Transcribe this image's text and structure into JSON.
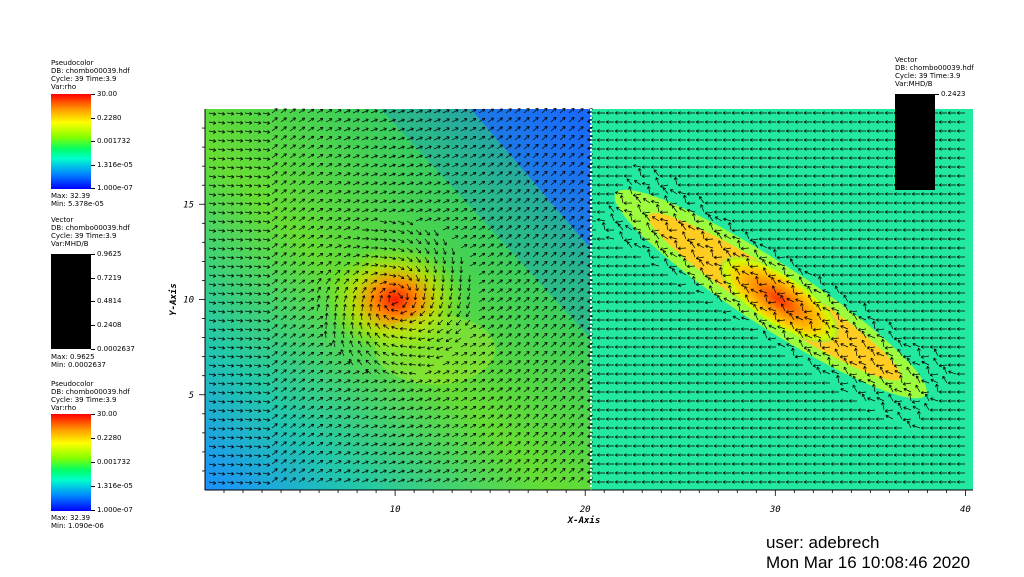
{
  "legends": [
    {
      "lines": [
        "Pseudocolor",
        "DB: chombo00039.hdf",
        "Cycle: 39     Time:3.9",
        "Var:rho"
      ],
      "ticks": [
        "30.00",
        "0.2280",
        "0.001732",
        "1.316e-05",
        "1.000e-07"
      ],
      "max": "Max: 32.39",
      "min": "Min: 5.378e-05",
      "style": "rainbow"
    },
    {
      "lines": [
        "Vector",
        "DB: chombo00039.hdf",
        "Cycle: 39     Time:3.9",
        "Var:MHD/B"
      ],
      "ticks": [
        "0.9625",
        "0.7219",
        "0.4814",
        "0.2408",
        "0.0002637"
      ],
      "max": "Max: 0.9625",
      "min": "Min: 0.0002637",
      "style": "black"
    },
    {
      "lines": [
        "Pseudocolor",
        "DB: chombo00039.hdf",
        "Cycle: 39     Time:3.9",
        "Var:rho"
      ],
      "ticks": [
        "30.00",
        "0.2280",
        "0.001732",
        "1.316e-05",
        "1.000e-07"
      ],
      "max": "Max: 32.39",
      "min": "Min: 1.090e-06",
      "style": "rainbow"
    }
  ],
  "legend_right": {
    "lines": [
      "Vector",
      "DB: chombo00039.hdf",
      "Cycle: 39     Time:3.9",
      "Var:MHD/B"
    ],
    "top_tick": "0.2423"
  },
  "chart_data": {
    "type": "heatmap",
    "title": "",
    "xlabel": "X-Axis",
    "ylabel": "Y-Axis",
    "xlim": [
      0,
      40.4
    ],
    "ylim": [
      0,
      20
    ],
    "xticks": [
      10,
      20,
      30,
      40
    ],
    "yticks": [
      5,
      10,
      15
    ],
    "colormap": "log rainbow (blue low, red high)",
    "fields": [
      {
        "name": "rho",
        "region": "left",
        "x_range": [
          0,
          20.3
        ],
        "peak": [
          10,
          10
        ],
        "max": 32.39,
        "min": 5.378e-05
      },
      {
        "name": "rho",
        "region": "right",
        "x_range": [
          20.3,
          40.4
        ],
        "peak": [
          30.2,
          10
        ],
        "max": 32.39,
        "min": 1.09e-06
      }
    ],
    "overlay": "Vector MHD/B (black arrows)"
  },
  "footer": {
    "user": "user: adebrech",
    "date": "Mon Mar 16 10:08:46 2020"
  },
  "colors": {
    "red": "#ff0000",
    "yellow": "#ffff00",
    "green": "#00ff66",
    "cyan": "#00ffcc",
    "blue": "#0000ff",
    "vector": "#000000"
  }
}
